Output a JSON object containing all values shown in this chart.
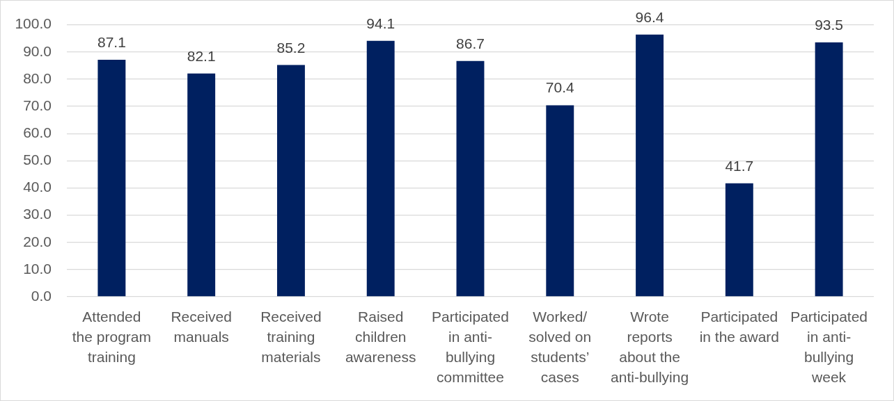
{
  "chart_data": {
    "type": "bar",
    "categories": [
      "Attended the program training",
      "Received manuals",
      "Received training materials",
      "Raised children awareness",
      "Participated in anti-bullying committee",
      "Worked/solved on students’ cases",
      "Wrote reports about the anti-bullying",
      "Participated in the award",
      "Participated in anti-bullying week"
    ],
    "values": [
      87.1,
      82.1,
      85.2,
      94.1,
      86.7,
      70.4,
      96.4,
      41.7,
      93.5
    ],
    "color": "#002060",
    "ylim": [
      0,
      100
    ],
    "yticks": [
      {
        "value": 0,
        "label": "0.0"
      },
      {
        "value": 10,
        "label": "10.0"
      },
      {
        "value": 20,
        "label": "20.0"
      },
      {
        "value": 30,
        "label": "30.0"
      },
      {
        "value": 40,
        "label": "40.0"
      },
      {
        "value": 50,
        "label": "50.0"
      },
      {
        "value": 60,
        "label": "60.0"
      },
      {
        "value": 70,
        "label": "70.0"
      },
      {
        "value": 80,
        "label": "80.0"
      },
      {
        "value": 90,
        "label": "90.0"
      },
      {
        "value": 100,
        "label": "100.0"
      }
    ],
    "grid": "y",
    "data_labels": true
  }
}
